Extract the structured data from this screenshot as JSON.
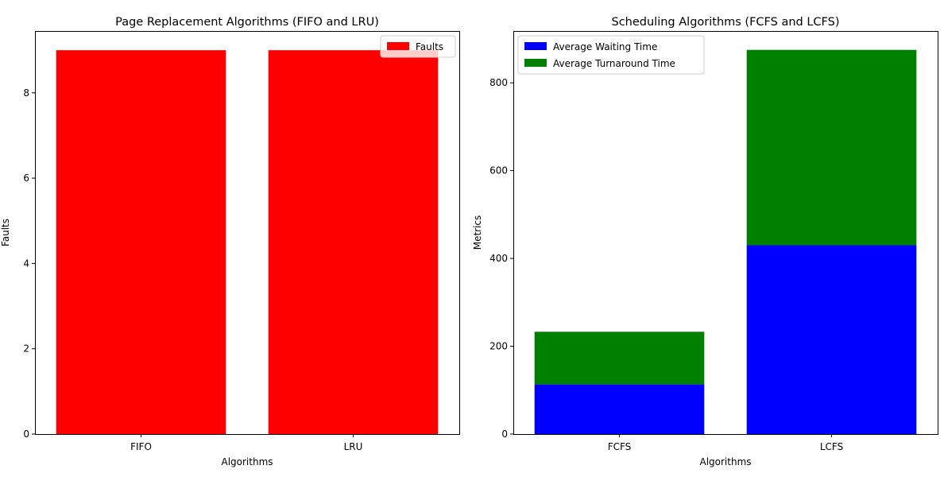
{
  "chart_data": [
    {
      "type": "bar",
      "title": "Page Replacement Algorithms (FIFO and LRU)",
      "xlabel": "Algorithms",
      "ylabel": "Faults",
      "categories": [
        "FIFO",
        "LRU"
      ],
      "series": [
        {
          "name": "Faults",
          "values": [
            9,
            9
          ],
          "color": "#ff0000"
        }
      ],
      "ylim": [
        0,
        9.45
      ],
      "yticks": [
        0,
        2,
        4,
        6,
        8
      ],
      "legend": "upper right",
      "grid": false
    },
    {
      "type": "bar",
      "stacked": true,
      "title": "Scheduling Algorithms (FCFS and LCFS)",
      "xlabel": "Algorithms",
      "ylabel": "Metrics",
      "categories": [
        "FCFS",
        "LCFS"
      ],
      "series": [
        {
          "name": "Average Waiting Time",
          "values": [
            113,
            430
          ],
          "color": "#0000ff"
        },
        {
          "name": "Average Turnaround Time",
          "values": [
            120,
            445
          ],
          "color": "#008000"
        }
      ],
      "ylim": [
        0,
        918
      ],
      "yticks": [
        0,
        200,
        400,
        600,
        800
      ],
      "legend": "upper left",
      "grid": false
    }
  ]
}
